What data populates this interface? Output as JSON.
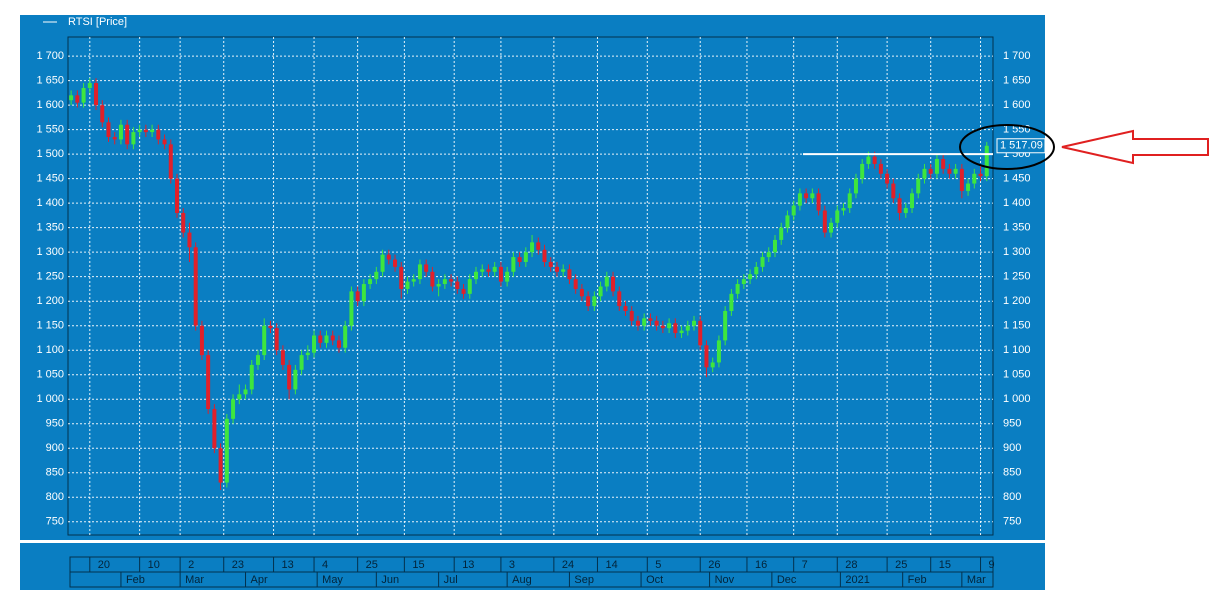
{
  "chart_data": {
    "type": "candlestick",
    "legend": "RTSI [Price]",
    "up_color": "#3ee63e",
    "down_color": "#e0202a",
    "grid": true,
    "xlim": [
      0,
      297
    ],
    "ylim": [
      723,
      1739
    ],
    "yticks": [
      {
        "value": 750,
        "label": "750"
      },
      {
        "value": 800,
        "label": "800"
      },
      {
        "value": 850,
        "label": "850"
      },
      {
        "value": 900,
        "label": "900"
      },
      {
        "value": 950,
        "label": "950"
      },
      {
        "value": 1000,
        "label": "1 000"
      },
      {
        "value": 1050,
        "label": "1 050"
      },
      {
        "value": 1100,
        "label": "1 100"
      },
      {
        "value": 1150,
        "label": "1 150"
      },
      {
        "value": 1200,
        "label": "1 200"
      },
      {
        "value": 1250,
        "label": "1 250"
      },
      {
        "value": 1300,
        "label": "1 300"
      },
      {
        "value": 1350,
        "label": "1 350"
      },
      {
        "value": 1400,
        "label": "1 400"
      },
      {
        "value": 1450,
        "label": "1 450"
      },
      {
        "value": 1500,
        "label": "1 500"
      },
      {
        "value": 1550,
        "label": "1 550"
      },
      {
        "value": 1600,
        "label": "1 600"
      },
      {
        "value": 1650,
        "label": "1 650"
      },
      {
        "value": 1700,
        "label": "1 700"
      }
    ],
    "xticks": [
      {
        "value": 7,
        "label": "20"
      },
      {
        "value": 23,
        "label": "10"
      },
      {
        "value": 36,
        "label": "2"
      },
      {
        "value": 50,
        "label": "23"
      },
      {
        "value": 66,
        "label": "13"
      },
      {
        "value": 79,
        "label": "4"
      },
      {
        "value": 93,
        "label": "25"
      },
      {
        "value": 108,
        "label": "15"
      },
      {
        "value": 124,
        "label": "13"
      },
      {
        "value": 139,
        "label": "3"
      },
      {
        "value": 156,
        "label": "24"
      },
      {
        "value": 170,
        "label": "14"
      },
      {
        "value": 186,
        "label": "5"
      },
      {
        "value": 203,
        "label": "26"
      },
      {
        "value": 218,
        "label": "16"
      },
      {
        "value": 233,
        "label": "7"
      },
      {
        "value": 247,
        "label": "28"
      },
      {
        "value": 263,
        "label": "25"
      },
      {
        "value": 277,
        "label": "15"
      },
      {
        "value": 293,
        "label": "9"
      }
    ],
    "month_ticks": [
      {
        "value": 17,
        "label": "Feb"
      },
      {
        "value": 36,
        "label": "Mar"
      },
      {
        "value": 57,
        "label": "Apr"
      },
      {
        "value": 80,
        "label": "May"
      },
      {
        "value": 99,
        "label": "Jun"
      },
      {
        "value": 119,
        "label": "Jul"
      },
      {
        "value": 141,
        "label": "Aug"
      },
      {
        "value": 161,
        "label": "Sep"
      },
      {
        "value": 184,
        "label": "Oct"
      },
      {
        "value": 206,
        "label": "Nov"
      },
      {
        "value": 226,
        "label": "Dec"
      },
      {
        "value": 248,
        "label": "2021"
      },
      {
        "value": 268,
        "label": "Feb"
      },
      {
        "value": 287,
        "label": "Mar"
      }
    ],
    "last_price": {
      "value": 1517.09,
      "label": "1 517.09"
    },
    "hline": {
      "y": 1500,
      "x": [
        236,
        297
      ]
    },
    "x": [
      1,
      3,
      5,
      7,
      9,
      11,
      13,
      15,
      17,
      19,
      21,
      23,
      25,
      27,
      29,
      31,
      33,
      35,
      37,
      39,
      41,
      43,
      45,
      47,
      49,
      51,
      53,
      55,
      57,
      59,
      61,
      63,
      65,
      67,
      69,
      71,
      73,
      75,
      77,
      79,
      81,
      83,
      85,
      87,
      89,
      91,
      93,
      95,
      97,
      99,
      101,
      103,
      105,
      107,
      109,
      111,
      113,
      115,
      117,
      119,
      121,
      123,
      125,
      127,
      129,
      131,
      133,
      135,
      137,
      139,
      141,
      143,
      145,
      147,
      149,
      151,
      153,
      155,
      157,
      159,
      161,
      163,
      165,
      167,
      169,
      171,
      173,
      175,
      177,
      179,
      181,
      183,
      185,
      187,
      189,
      191,
      193,
      195,
      197,
      199,
      201,
      203,
      205,
      207,
      209,
      211,
      213,
      215,
      217,
      219,
      221,
      223,
      225,
      227,
      229,
      231,
      233,
      235,
      237,
      239,
      241,
      243,
      245,
      247,
      249,
      251,
      253,
      255,
      257,
      259,
      261,
      263,
      265,
      267,
      269,
      271,
      273,
      275,
      277,
      279,
      281,
      283,
      285,
      287,
      289,
      291,
      293,
      295
    ],
    "open": [
      1610,
      1620,
      1605,
      1635,
      1645,
      1600,
      1565,
      1535,
      1530,
      1560,
      1520,
      1545,
      1550,
      1545,
      1550,
      1530,
      1520,
      1450,
      1380,
      1340,
      1310,
      1150,
      1090,
      980,
      900,
      830,
      960,
      1000,
      1010,
      1020,
      1070,
      1090,
      1150,
      1145,
      1100,
      1070,
      1020,
      1060,
      1090,
      1095,
      1130,
      1115,
      1130,
      1120,
      1105,
      1150,
      1220,
      1200,
      1235,
      1245,
      1260,
      1295,
      1285,
      1270,
      1225,
      1240,
      1245,
      1275,
      1260,
      1230,
      1235,
      1245,
      1240,
      1225,
      1215,
      1245,
      1260,
      1265,
      1260,
      1270,
      1240,
      1260,
      1290,
      1280,
      1300,
      1320,
      1305,
      1280,
      1270,
      1260,
      1265,
      1245,
      1225,
      1210,
      1190,
      1210,
      1230,
      1250,
      1220,
      1190,
      1180,
      1160,
      1150,
      1165,
      1160,
      1150,
      1145,
      1155,
      1135,
      1140,
      1150,
      1160,
      1110,
      1065,
      1075,
      1120,
      1180,
      1215,
      1235,
      1245,
      1255,
      1270,
      1290,
      1300,
      1325,
      1350,
      1375,
      1395,
      1420,
      1410,
      1420,
      1385,
      1340,
      1360,
      1385,
      1390,
      1420,
      1450,
      1480,
      1495,
      1480,
      1460,
      1440,
      1410,
      1380,
      1390,
      1420,
      1450,
      1470,
      1460,
      1490,
      1470,
      1460,
      1470,
      1425,
      1440,
      1460,
      1455
    ],
    "high": [
      1630,
      1630,
      1645,
      1655,
      1655,
      1610,
      1575,
      1545,
      1570,
      1570,
      1555,
      1560,
      1560,
      1560,
      1560,
      1540,
      1530,
      1460,
      1390,
      1360,
      1320,
      1160,
      1100,
      990,
      910,
      970,
      1010,
      1030,
      1030,
      1080,
      1100,
      1165,
      1160,
      1155,
      1110,
      1080,
      1070,
      1100,
      1110,
      1140,
      1140,
      1140,
      1140,
      1130,
      1160,
      1230,
      1230,
      1245,
      1255,
      1270,
      1305,
      1305,
      1295,
      1280,
      1250,
      1255,
      1285,
      1285,
      1270,
      1245,
      1255,
      1255,
      1250,
      1235,
      1255,
      1270,
      1275,
      1275,
      1280,
      1280,
      1270,
      1300,
      1300,
      1310,
      1335,
      1330,
      1315,
      1290,
      1280,
      1275,
      1275,
      1255,
      1235,
      1220,
      1220,
      1240,
      1260,
      1260,
      1230,
      1200,
      1190,
      1170,
      1175,
      1175,
      1170,
      1160,
      1165,
      1165,
      1150,
      1160,
      1170,
      1170,
      1120,
      1085,
      1130,
      1190,
      1225,
      1245,
      1255,
      1265,
      1280,
      1300,
      1310,
      1335,
      1360,
      1385,
      1405,
      1430,
      1430,
      1430,
      1430,
      1395,
      1370,
      1395,
      1400,
      1430,
      1460,
      1490,
      1505,
      1505,
      1490,
      1470,
      1450,
      1420,
      1400,
      1430,
      1460,
      1480,
      1480,
      1500,
      1500,
      1480,
      1480,
      1480,
      1450,
      1470,
      1475,
      1525
    ],
    "low": [
      1600,
      1595,
      1595,
      1625,
      1590,
      1555,
      1525,
      1520,
      1520,
      1510,
      1510,
      1535,
      1535,
      1535,
      1520,
      1510,
      1440,
      1370,
      1330,
      1280,
      1140,
      1080,
      970,
      890,
      815,
      820,
      950,
      990,
      1000,
      1010,
      1060,
      1080,
      1135,
      1090,
      1060,
      1000,
      1010,
      1050,
      1080,
      1085,
      1105,
      1105,
      1110,
      1095,
      1095,
      1140,
      1190,
      1190,
      1225,
      1235,
      1250,
      1275,
      1260,
      1205,
      1215,
      1230,
      1235,
      1250,
      1220,
      1210,
      1225,
      1230,
      1215,
      1205,
      1205,
      1235,
      1250,
      1250,
      1250,
      1230,
      1230,
      1250,
      1270,
      1270,
      1290,
      1295,
      1270,
      1260,
      1250,
      1250,
      1235,
      1215,
      1200,
      1180,
      1180,
      1200,
      1220,
      1210,
      1180,
      1170,
      1150,
      1140,
      1140,
      1150,
      1140,
      1135,
      1135,
      1125,
      1125,
      1130,
      1140,
      1100,
      1045,
      1055,
      1065,
      1110,
      1170,
      1205,
      1225,
      1235,
      1245,
      1260,
      1280,
      1290,
      1315,
      1340,
      1365,
      1385,
      1400,
      1400,
      1375,
      1330,
      1330,
      1350,
      1375,
      1380,
      1410,
      1440,
      1470,
      1470,
      1450,
      1430,
      1400,
      1365,
      1370,
      1380,
      1410,
      1440,
      1450,
      1450,
      1460,
      1450,
      1450,
      1410,
      1415,
      1430,
      1445,
      1445
    ],
    "close": [
      1620,
      1605,
      1635,
      1645,
      1600,
      1565,
      1535,
      1530,
      1560,
      1520,
      1545,
      1550,
      1545,
      1550,
      1530,
      1520,
      1450,
      1380,
      1340,
      1310,
      1150,
      1090,
      980,
      900,
      830,
      960,
      1000,
      1010,
      1020,
      1070,
      1090,
      1150,
      1145,
      1100,
      1070,
      1020,
      1060,
      1090,
      1095,
      1130,
      1115,
      1130,
      1120,
      1105,
      1150,
      1220,
      1200,
      1235,
      1245,
      1260,
      1295,
      1285,
      1270,
      1225,
      1240,
      1245,
      1275,
      1260,
      1230,
      1235,
      1245,
      1240,
      1225,
      1215,
      1245,
      1260,
      1265,
      1260,
      1270,
      1240,
      1260,
      1290,
      1280,
      1300,
      1320,
      1305,
      1280,
      1270,
      1260,
      1265,
      1245,
      1225,
      1210,
      1190,
      1210,
      1230,
      1250,
      1220,
      1190,
      1180,
      1160,
      1150,
      1165,
      1160,
      1150,
      1145,
      1155,
      1135,
      1140,
      1150,
      1160,
      1110,
      1065,
      1075,
      1120,
      1180,
      1215,
      1235,
      1245,
      1255,
      1270,
      1290,
      1300,
      1325,
      1350,
      1375,
      1395,
      1420,
      1410,
      1420,
      1385,
      1340,
      1360,
      1385,
      1390,
      1420,
      1450,
      1480,
      1495,
      1480,
      1460,
      1440,
      1410,
      1380,
      1390,
      1420,
      1450,
      1470,
      1460,
      1490,
      1470,
      1460,
      1470,
      1425,
      1440,
      1460,
      1455,
      1517.09
    ]
  }
}
